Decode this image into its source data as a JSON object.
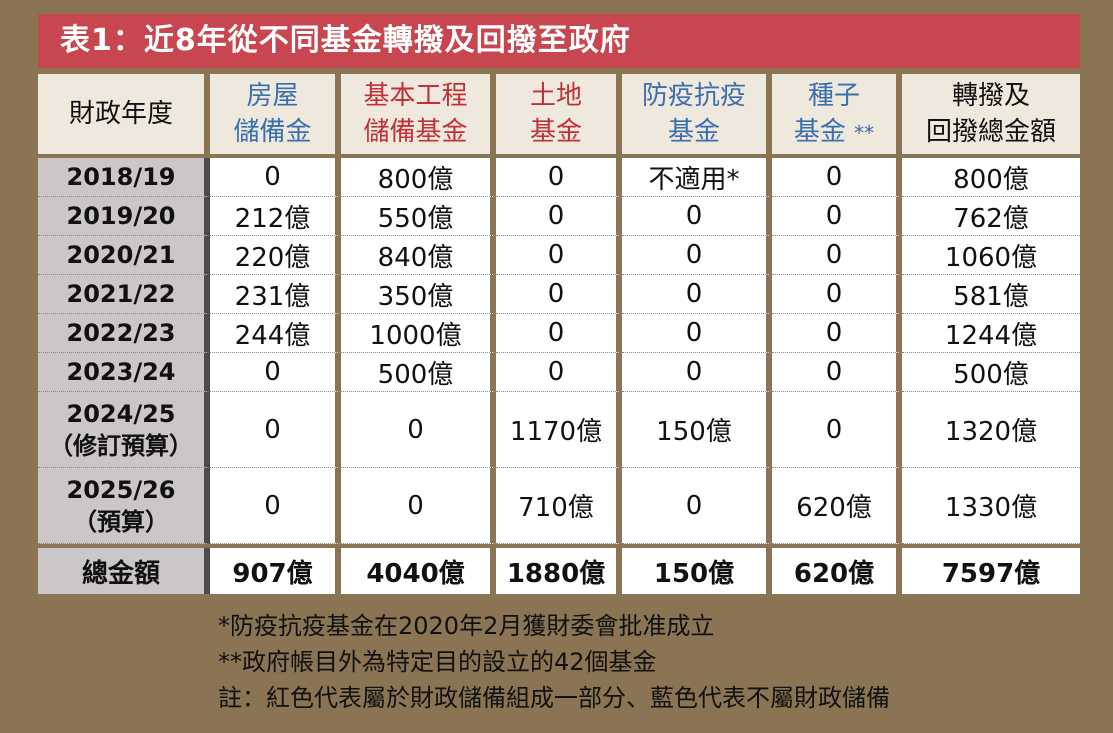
{
  "title": "表1：近8年從不同基金轉撥及回撥至政府",
  "headers": {
    "year": "財政年度",
    "col1_line1": "房屋",
    "col1_line2": "儲備金",
    "col2_line1": "基本工程",
    "col2_line2": "儲備基金",
    "col3_line1": "土地",
    "col3_line2": "基金",
    "col4_line1": "防疫抗疫",
    "col4_line2": "基金",
    "col5_line1": "種子",
    "col5_line2": "基金",
    "col5_star": "**",
    "col6_line1": "轉撥及",
    "col6_line2": "回撥總金額"
  },
  "colors": {
    "title_bg": "#c8464f",
    "blue": "#3a6eb0",
    "red": "#c0313a",
    "background": "#8a7453"
  },
  "rows": [
    {
      "year": "2018/19",
      "v": [
        "0",
        "800億",
        "0",
        "不適用*",
        "0",
        "800億"
      ]
    },
    {
      "year": "2019/20",
      "v": [
        "212億",
        "550億",
        "0",
        "0",
        "0",
        "762億"
      ]
    },
    {
      "year": "2020/21",
      "v": [
        "220億",
        "840億",
        "0",
        "0",
        "0",
        "1060億"
      ]
    },
    {
      "year": "2021/22",
      "v": [
        "231億",
        "350億",
        "0",
        "0",
        "0",
        "581億"
      ]
    },
    {
      "year": "2022/23",
      "v": [
        "244億",
        "1000億",
        "0",
        "0",
        "0",
        "1244億"
      ]
    },
    {
      "year": "2023/24",
      "v": [
        "0",
        "500億",
        "0",
        "0",
        "0",
        "500億"
      ]
    },
    {
      "year": "2024/25",
      "year_note": "（修訂預算）",
      "v": [
        "0",
        "0",
        "1170億",
        "150億",
        "0",
        "1320億"
      ]
    },
    {
      "year": "2025/26",
      "year_note": "（預算）",
      "v": [
        "0",
        "0",
        "710億",
        "0",
        "620億",
        "1330億"
      ]
    }
  ],
  "total": {
    "label": "總金額",
    "v": [
      "907億",
      "4040億",
      "1880億",
      "150億",
      "620億",
      "7597億"
    ]
  },
  "notes": [
    "*防疫抗疫基金在2020年2月獲財委會批准成立",
    "**政府帳目外為特定目的設立的42個基金",
    "註：紅色代表屬於財政儲備組成一部分、藍色代表不屬財政儲備"
  ]
}
